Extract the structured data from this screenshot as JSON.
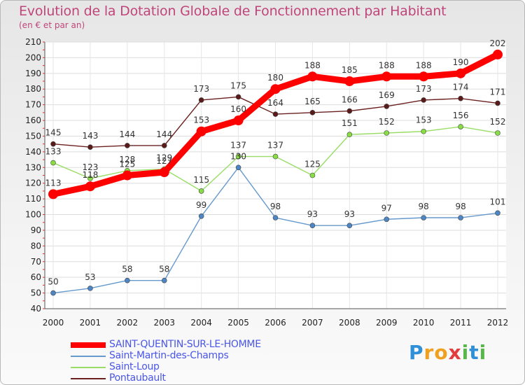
{
  "title": "Evolution de la Dotation Globale de Fonctionnement par Habitant",
  "subtitle": "(en € et par an)",
  "logo": "Proxiti",
  "chart_data": {
    "type": "line",
    "title": "Evolution de la Dotation Globale de Fonctionnement par Habitant",
    "subtitle": "(en € et par an)",
    "x": [
      "2000",
      "2001",
      "2002",
      "2003",
      "2004",
      "2005",
      "2006",
      "2007",
      "2008",
      "2009",
      "2010",
      "2011",
      "2012"
    ],
    "ylim": [
      40,
      210
    ],
    "yticks": [
      40,
      50,
      60,
      70,
      80,
      90,
      100,
      110,
      120,
      130,
      140,
      150,
      160,
      170,
      180,
      190,
      200,
      210
    ],
    "grid": true,
    "legend_position": "bottom-left",
    "series": [
      {
        "name": "SAINT-QUENTIN-SUR-LE-HOMME",
        "color": "#ff0000",
        "values": [
          113,
          118,
          125,
          127,
          153,
          160,
          180,
          188,
          185,
          188,
          188,
          190,
          202
        ],
        "labels": [
          "113",
          "118",
          "125",
          "127",
          "153",
          "160",
          "180",
          "188",
          "185",
          "188",
          "188",
          "190",
          "202"
        ]
      },
      {
        "name": "Saint-Martin-des-Champs",
        "color": "#6699cc",
        "values": [
          50,
          53,
          58,
          58,
          99,
          130,
          98,
          93,
          93,
          97,
          98,
          98,
          101
        ],
        "labels": [
          "50",
          "53",
          "58",
          "58",
          "99",
          "130",
          "98",
          "93",
          "93",
          "97",
          "98",
          "98",
          "101"
        ]
      },
      {
        "name": "Saint-Loup",
        "color": "#99dd66",
        "values": [
          133,
          123,
          128,
          129,
          115,
          137,
          137,
          125,
          151,
          152,
          153,
          156,
          152
        ],
        "labels": [
          "133",
          "123",
          "128",
          "129",
          "115",
          "137",
          "137",
          "125",
          "151",
          "152",
          "153",
          "156",
          "152"
        ]
      },
      {
        "name": "Pontaubault",
        "color": "#6b2020",
        "values": [
          145,
          143,
          144,
          144,
          173,
          175,
          164,
          165,
          166,
          169,
          173,
          174,
          171
        ],
        "labels": [
          "145",
          "143",
          "144",
          "144",
          "173",
          "175",
          "164",
          "165",
          "166",
          "169",
          "173",
          "174",
          "171"
        ]
      }
    ]
  }
}
